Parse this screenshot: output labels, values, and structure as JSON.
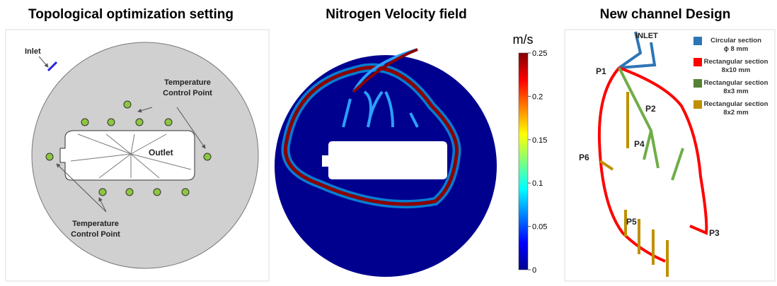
{
  "panels": [
    {
      "title": "Topological optimization setting",
      "labels": {
        "inlet": "Inlet",
        "tcp_top": [
          "Temperature",
          "Control Point"
        ],
        "outlet": "Outlet",
        "tcp_bottom": [
          "Temperature",
          "Control Point"
        ]
      }
    },
    {
      "title": "Nitrogen Velocity field",
      "colorbar": {
        "unit": "m/s",
        "lim": [
          0,
          0.25
        ],
        "ticks": [
          0,
          0.05,
          0.1,
          0.15,
          0.2,
          0.25
        ]
      }
    },
    {
      "title": "New channel Design",
      "labels": {
        "inlet": "INLET",
        "p1": "P1",
        "p2": "P2",
        "p3": "P3",
        "p4": "P4",
        "p5": "P5",
        "p6": "P6"
      },
      "legend": [
        {
          "lines": [
            "Circular section",
            "ϕ 8 mm"
          ],
          "color": "#2e75b6"
        },
        {
          "lines": [
            "Rectangular section",
            "8x10 mm"
          ],
          "color": "#ff0000"
        },
        {
          "lines": [
            "Rectangular section",
            "8x3 mm"
          ],
          "color": "#548235"
        },
        {
          "lines": [
            "Rectangular section",
            "8x2 mm"
          ],
          "color": "#bf9000"
        }
      ]
    }
  ]
}
